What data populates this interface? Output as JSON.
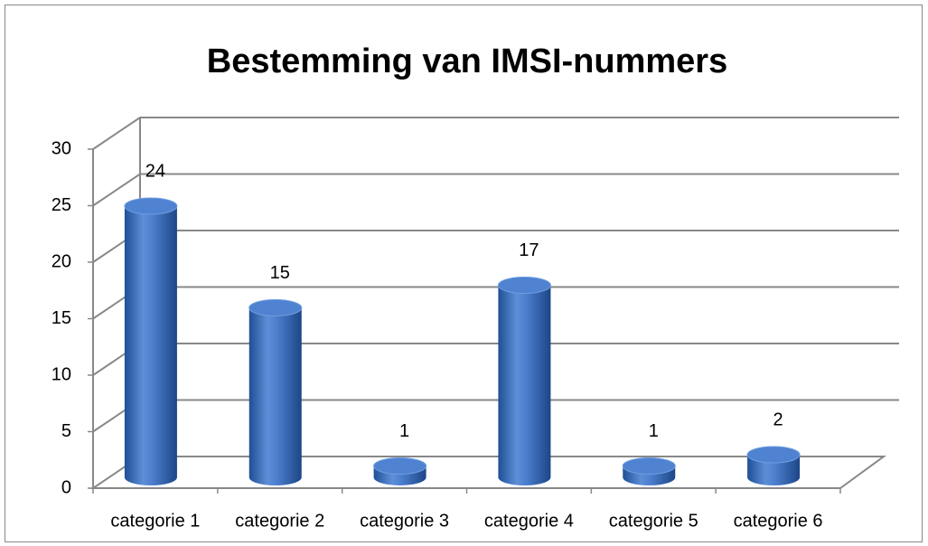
{
  "chart_data": {
    "type": "bar",
    "title": "Bestemming van IMSI-nummers",
    "categories": [
      "categorie 1",
      "categorie 2",
      "categorie 3",
      "categorie 4",
      "categorie 5",
      "categorie 6"
    ],
    "values": [
      24,
      15,
      1,
      17,
      1,
      2
    ],
    "color": "#3a6fbf",
    "ylim": [
      0,
      30
    ],
    "yticks": [
      0,
      5,
      10,
      15,
      20,
      25,
      30
    ],
    "grid": true
  }
}
